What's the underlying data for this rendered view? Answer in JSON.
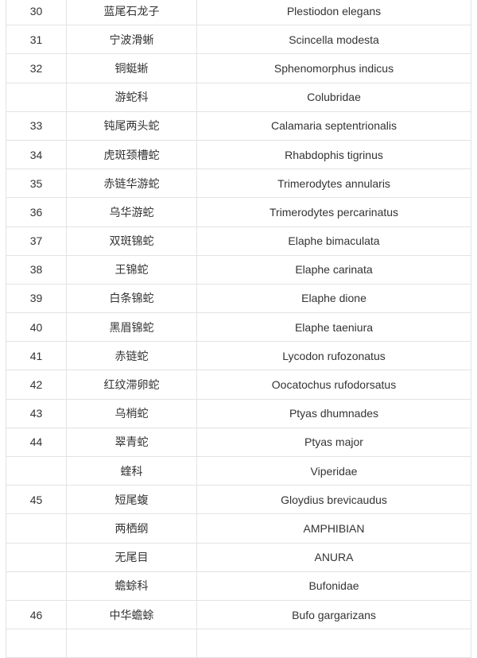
{
  "table": {
    "rows": [
      {
        "no": "30",
        "cn": "蓝尾石龙子",
        "latin": "Plestiodon elegans"
      },
      {
        "no": "31",
        "cn": "宁波滑蜥",
        "latin": "Scincella modesta"
      },
      {
        "no": "32",
        "cn": "铜蜓蜥",
        "latin": "Sphenomorphus indicus"
      },
      {
        "no": "",
        "cn": "游蛇科",
        "latin": "Colubridae"
      },
      {
        "no": "33",
        "cn": "钝尾两头蛇",
        "latin": "Calamaria septentrionalis"
      },
      {
        "no": "34",
        "cn": "虎斑颈槽蛇",
        "latin": "Rhabdophis tigrinus"
      },
      {
        "no": "35",
        "cn": "赤链华游蛇",
        "latin": "Trimerodytes annularis"
      },
      {
        "no": "36",
        "cn": "乌华游蛇",
        "latin": "Trimerodytes percarinatus"
      },
      {
        "no": "37",
        "cn": "双斑锦蛇",
        "latin": "Elaphe bimaculata"
      },
      {
        "no": "38",
        "cn": "王锦蛇",
        "latin": "Elaphe carinata"
      },
      {
        "no": "39",
        "cn": "白条锦蛇",
        "latin": "Elaphe dione"
      },
      {
        "no": "40",
        "cn": "黑眉锦蛇",
        "latin": "Elaphe taeniura"
      },
      {
        "no": "41",
        "cn": "赤链蛇",
        "latin": "Lycodon rufozonatus"
      },
      {
        "no": "42",
        "cn": "红纹滞卵蛇",
        "latin": "Oocatochus rufodorsatus"
      },
      {
        "no": "43",
        "cn": "乌梢蛇",
        "latin": "Ptyas dhumnades"
      },
      {
        "no": "44",
        "cn": "翠青蛇",
        "latin": "Ptyas major"
      },
      {
        "no": "",
        "cn": "蝰科",
        "latin": "Viperidae"
      },
      {
        "no": "45",
        "cn": "短尾蝮",
        "latin": "Gloydius brevicaudus"
      },
      {
        "no": "",
        "cn": "两栖纲",
        "latin": "AMPHIBIAN"
      },
      {
        "no": "",
        "cn": "无尾目",
        "latin": "ANURA"
      },
      {
        "no": "",
        "cn": "蟾蜍科",
        "latin": "Bufonidae"
      },
      {
        "no": "46",
        "cn": "中华蟾蜍",
        "latin": "Bufo gargarizans"
      },
      {
        "no": "",
        "cn": "",
        "latin": ""
      }
    ]
  }
}
